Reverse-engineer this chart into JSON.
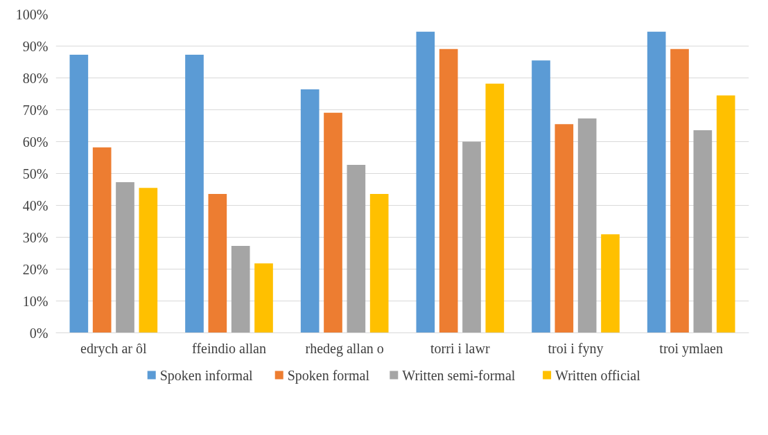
{
  "chart_data": {
    "type": "bar",
    "categories": [
      "edrych ar ôl",
      "ffeindio allan",
      "rhedeg allan o",
      "torri i lawr",
      "troi i fyny",
      "troi ymlaen"
    ],
    "series": [
      {
        "name": "Spoken informal",
        "color": "#5b9bd5",
        "values": [
          87.3,
          87.3,
          76.4,
          94.5,
          85.5,
          94.5
        ]
      },
      {
        "name": "Spoken formal",
        "color": "#ed7d31",
        "values": [
          58.2,
          43.6,
          69.1,
          89.1,
          65.5,
          89.1
        ]
      },
      {
        "name": "Written semi-formal",
        "color": "#a5a5a5",
        "values": [
          47.3,
          27.3,
          52.7,
          60.0,
          67.3,
          63.6
        ]
      },
      {
        "name": "Written official",
        "color": "#ffc000",
        "values": [
          45.5,
          21.8,
          43.6,
          78.2,
          30.9,
          74.5
        ]
      }
    ],
    "ylim": [
      0,
      100
    ],
    "yticks": [
      {
        "value": 0,
        "label": "0%"
      },
      {
        "value": 10,
        "label": "10%"
      },
      {
        "value": 20,
        "label": "20%"
      },
      {
        "value": 30,
        "label": "30%"
      },
      {
        "value": 40,
        "label": "40%"
      },
      {
        "value": 50,
        "label": "50%"
      },
      {
        "value": 60,
        "label": "60%"
      },
      {
        "value": 70,
        "label": "70%"
      },
      {
        "value": 80,
        "label": "80%"
      },
      {
        "value": 90,
        "label": "90%"
      },
      {
        "value": 100,
        "label": "100%"
      }
    ],
    "grid": "y",
    "legend": "bottom"
  }
}
